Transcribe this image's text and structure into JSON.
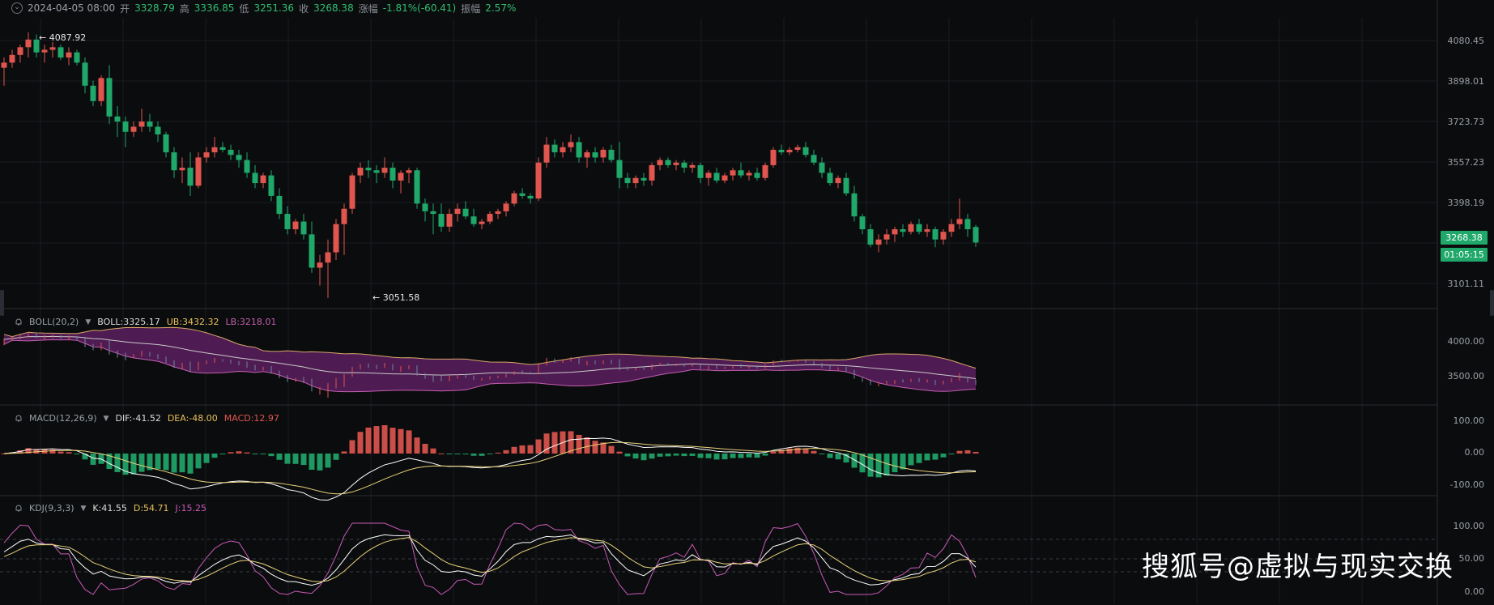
{
  "header": {
    "date": "2024-04-05 08:00",
    "open_label": "开",
    "open": "3328.79",
    "high_label": "高",
    "high": "3336.85",
    "low_label": "低",
    "low": "3251.36",
    "close_label": "收",
    "close": "3268.38",
    "change_label": "涨幅",
    "change": "-1.81%(-60.41)",
    "amp_label": "振幅",
    "amp": "2.57%"
  },
  "price_axis": [
    "4080.45",
    "3898.01",
    "3723.73",
    "3557.23",
    "3398.19",
    "3101.11"
  ],
  "price_tag": {
    "price": "3268.38",
    "countdown": "01:05:15"
  },
  "annotations": {
    "high": "4087.92",
    "low": "3051.58"
  },
  "boll": {
    "name": "BOLL(20,2)",
    "boll": "BOLL:3325.17",
    "ub": "UB:3432.32",
    "lb": "LB:3218.01",
    "axis": [
      "4000.00",
      "3500.00"
    ]
  },
  "macd": {
    "name": "MACD(12,26,9)",
    "dif": "DIF:-41.52",
    "dea": "DEA:-48.00",
    "macd": "MACD:12.97",
    "axis": [
      "100.00",
      "0.00",
      "-100.00"
    ]
  },
  "kdj": {
    "name": "KDJ(9,3,3)",
    "k": "K:41.55",
    "d": "D:54.71",
    "j": "J:15.25",
    "axis": [
      "100.00",
      "50.00",
      "0.00"
    ]
  },
  "watermark": "搜狐号@虚拟与现实交换",
  "colors": {
    "up": "#e0564f",
    "down": "#1fa86a",
    "boll_fill": "#5a1f5e",
    "ub": "#d9a86a",
    "lb": "#c45fb0",
    "mid": "#c9c9c9",
    "dif": "#ffffff",
    "dea": "#e8d27a",
    "k": "#ffffff",
    "d": "#e8d27a",
    "j": "#c85ab8"
  },
  "chart_data": {
    "type": "candlestick",
    "ylim": [
      3000,
      4150
    ],
    "ohlc": [
      [
        3950,
        3990,
        3880,
        3970
      ],
      [
        3970,
        4020,
        3950,
        4000
      ],
      [
        4000,
        4040,
        3970,
        4030
      ],
      [
        4030,
        4087.92,
        3990,
        4060
      ],
      [
        4060,
        4080,
        3990,
        4010
      ],
      [
        4010,
        4040,
        3970,
        4020
      ],
      [
        4020,
        4050,
        3990,
        4030
      ],
      [
        4030,
        4040,
        3980,
        3990
      ],
      [
        3990,
        4030,
        3960,
        4010
      ],
      [
        4010,
        4020,
        3960,
        3970
      ],
      [
        3970,
        3990,
        3850,
        3880
      ],
      [
        3880,
        3900,
        3800,
        3820
      ],
      [
        3820,
        3920,
        3800,
        3910
      ],
      [
        3910,
        3960,
        3730,
        3760
      ],
      [
        3760,
        3800,
        3680,
        3740
      ],
      [
        3740,
        3760,
        3640,
        3700
      ],
      [
        3700,
        3740,
        3680,
        3720
      ],
      [
        3720,
        3790,
        3700,
        3740
      ],
      [
        3740,
        3770,
        3700,
        3720
      ],
      [
        3720,
        3740,
        3660,
        3690
      ],
      [
        3690,
        3700,
        3600,
        3620
      ],
      [
        3620,
        3640,
        3520,
        3550
      ],
      [
        3550,
        3600,
        3500,
        3560
      ],
      [
        3560,
        3620,
        3450,
        3490
      ],
      [
        3490,
        3620,
        3480,
        3600
      ],
      [
        3600,
        3640,
        3580,
        3620
      ],
      [
        3620,
        3680,
        3600,
        3640
      ],
      [
        3640,
        3660,
        3620,
        3630
      ],
      [
        3630,
        3650,
        3590,
        3610
      ],
      [
        3610,
        3630,
        3560,
        3590
      ],
      [
        3590,
        3620,
        3520,
        3540
      ],
      [
        3540,
        3570,
        3480,
        3500
      ],
      [
        3500,
        3540,
        3480,
        3530
      ],
      [
        3530,
        3550,
        3430,
        3450
      ],
      [
        3450,
        3480,
        3360,
        3380
      ],
      [
        3380,
        3410,
        3300,
        3320
      ],
      [
        3320,
        3360,
        3300,
        3350
      ],
      [
        3350,
        3380,
        3280,
        3300
      ],
      [
        3300,
        3350,
        3150,
        3170
      ],
      [
        3170,
        3220,
        3100,
        3190
      ],
      [
        3190,
        3280,
        3051.58,
        3230
      ],
      [
        3230,
        3360,
        3200,
        3340
      ],
      [
        3340,
        3420,
        3220,
        3400
      ],
      [
        3400,
        3540,
        3380,
        3530
      ],
      [
        3530,
        3580,
        3500,
        3560
      ],
      [
        3560,
        3590,
        3520,
        3550
      ],
      [
        3550,
        3570,
        3500,
        3540
      ],
      [
        3540,
        3600,
        3520,
        3560
      ],
      [
        3560,
        3580,
        3480,
        3510
      ],
      [
        3510,
        3550,
        3460,
        3540
      ],
      [
        3540,
        3560,
        3500,
        3550
      ],
      [
        3550,
        3560,
        3400,
        3420
      ],
      [
        3420,
        3440,
        3350,
        3390
      ],
      [
        3390,
        3420,
        3300,
        3380
      ],
      [
        3380,
        3420,
        3310,
        3330
      ],
      [
        3330,
        3400,
        3310,
        3380
      ],
      [
        3380,
        3420,
        3350,
        3400
      ],
      [
        3400,
        3430,
        3360,
        3370
      ],
      [
        3370,
        3400,
        3330,
        3340
      ],
      [
        3340,
        3360,
        3320,
        3350
      ],
      [
        3350,
        3390,
        3340,
        3380
      ],
      [
        3380,
        3400,
        3360,
        3390
      ],
      [
        3390,
        3430,
        3370,
        3420
      ],
      [
        3420,
        3470,
        3410,
        3460
      ],
      [
        3460,
        3480,
        3440,
        3450
      ],
      [
        3450,
        3460,
        3420,
        3440
      ],
      [
        3440,
        3600,
        3430,
        3580
      ],
      [
        3580,
        3680,
        3560,
        3650
      ],
      [
        3650,
        3670,
        3600,
        3620
      ],
      [
        3620,
        3660,
        3600,
        3640
      ],
      [
        3640,
        3690,
        3620,
        3660
      ],
      [
        3660,
        3680,
        3580,
        3600
      ],
      [
        3600,
        3630,
        3560,
        3620
      ],
      [
        3620,
        3640,
        3580,
        3600
      ],
      [
        3600,
        3640,
        3580,
        3630
      ],
      [
        3630,
        3650,
        3580,
        3590
      ],
      [
        3590,
        3660,
        3480,
        3520
      ],
      [
        3520,
        3540,
        3480,
        3500
      ],
      [
        3500,
        3530,
        3480,
        3520
      ],
      [
        3520,
        3540,
        3490,
        3510
      ],
      [
        3510,
        3580,
        3490,
        3570
      ],
      [
        3570,
        3600,
        3550,
        3590
      ],
      [
        3590,
        3600,
        3560,
        3570
      ],
      [
        3570,
        3590,
        3550,
        3580
      ],
      [
        3580,
        3590,
        3540,
        3560
      ],
      [
        3560,
        3580,
        3540,
        3570
      ],
      [
        3570,
        3580,
        3500,
        3520
      ],
      [
        3520,
        3550,
        3490,
        3540
      ],
      [
        3540,
        3560,
        3500,
        3510
      ],
      [
        3510,
        3540,
        3500,
        3530
      ],
      [
        3530,
        3560,
        3510,
        3550
      ],
      [
        3550,
        3580,
        3520,
        3530
      ],
      [
        3530,
        3550,
        3510,
        3540
      ],
      [
        3540,
        3560,
        3510,
        3520
      ],
      [
        3520,
        3580,
        3510,
        3570
      ],
      [
        3570,
        3640,
        3560,
        3630
      ],
      [
        3630,
        3650,
        3610,
        3620
      ],
      [
        3620,
        3640,
        3610,
        3630
      ],
      [
        3630,
        3650,
        3620,
        3640
      ],
      [
        3640,
        3660,
        3600,
        3610
      ],
      [
        3610,
        3630,
        3570,
        3580
      ],
      [
        3580,
        3600,
        3520,
        3540
      ],
      [
        3540,
        3560,
        3490,
        3500
      ],
      [
        3500,
        3530,
        3480,
        3520
      ],
      [
        3520,
        3540,
        3450,
        3460
      ],
      [
        3460,
        3490,
        3350,
        3370
      ],
      [
        3370,
        3380,
        3300,
        3320
      ],
      [
        3320,
        3340,
        3250,
        3260
      ],
      [
        3260,
        3300,
        3230,
        3280
      ],
      [
        3280,
        3320,
        3260,
        3300
      ],
      [
        3300,
        3330,
        3270,
        3320
      ],
      [
        3320,
        3340,
        3290,
        3310
      ],
      [
        3310,
        3350,
        3300,
        3340
      ],
      [
        3340,
        3360,
        3300,
        3310
      ],
      [
        3310,
        3340,
        3290,
        3320
      ],
      [
        3320,
        3330,
        3250,
        3280
      ],
      [
        3280,
        3320,
        3260,
        3310
      ],
      [
        3310,
        3360,
        3290,
        3340
      ],
      [
        3340,
        3440,
        3320,
        3360
      ],
      [
        3360,
        3380,
        3290,
        3320
      ],
      [
        3328.79,
        3336.85,
        3251.36,
        3268.38
      ]
    ]
  }
}
